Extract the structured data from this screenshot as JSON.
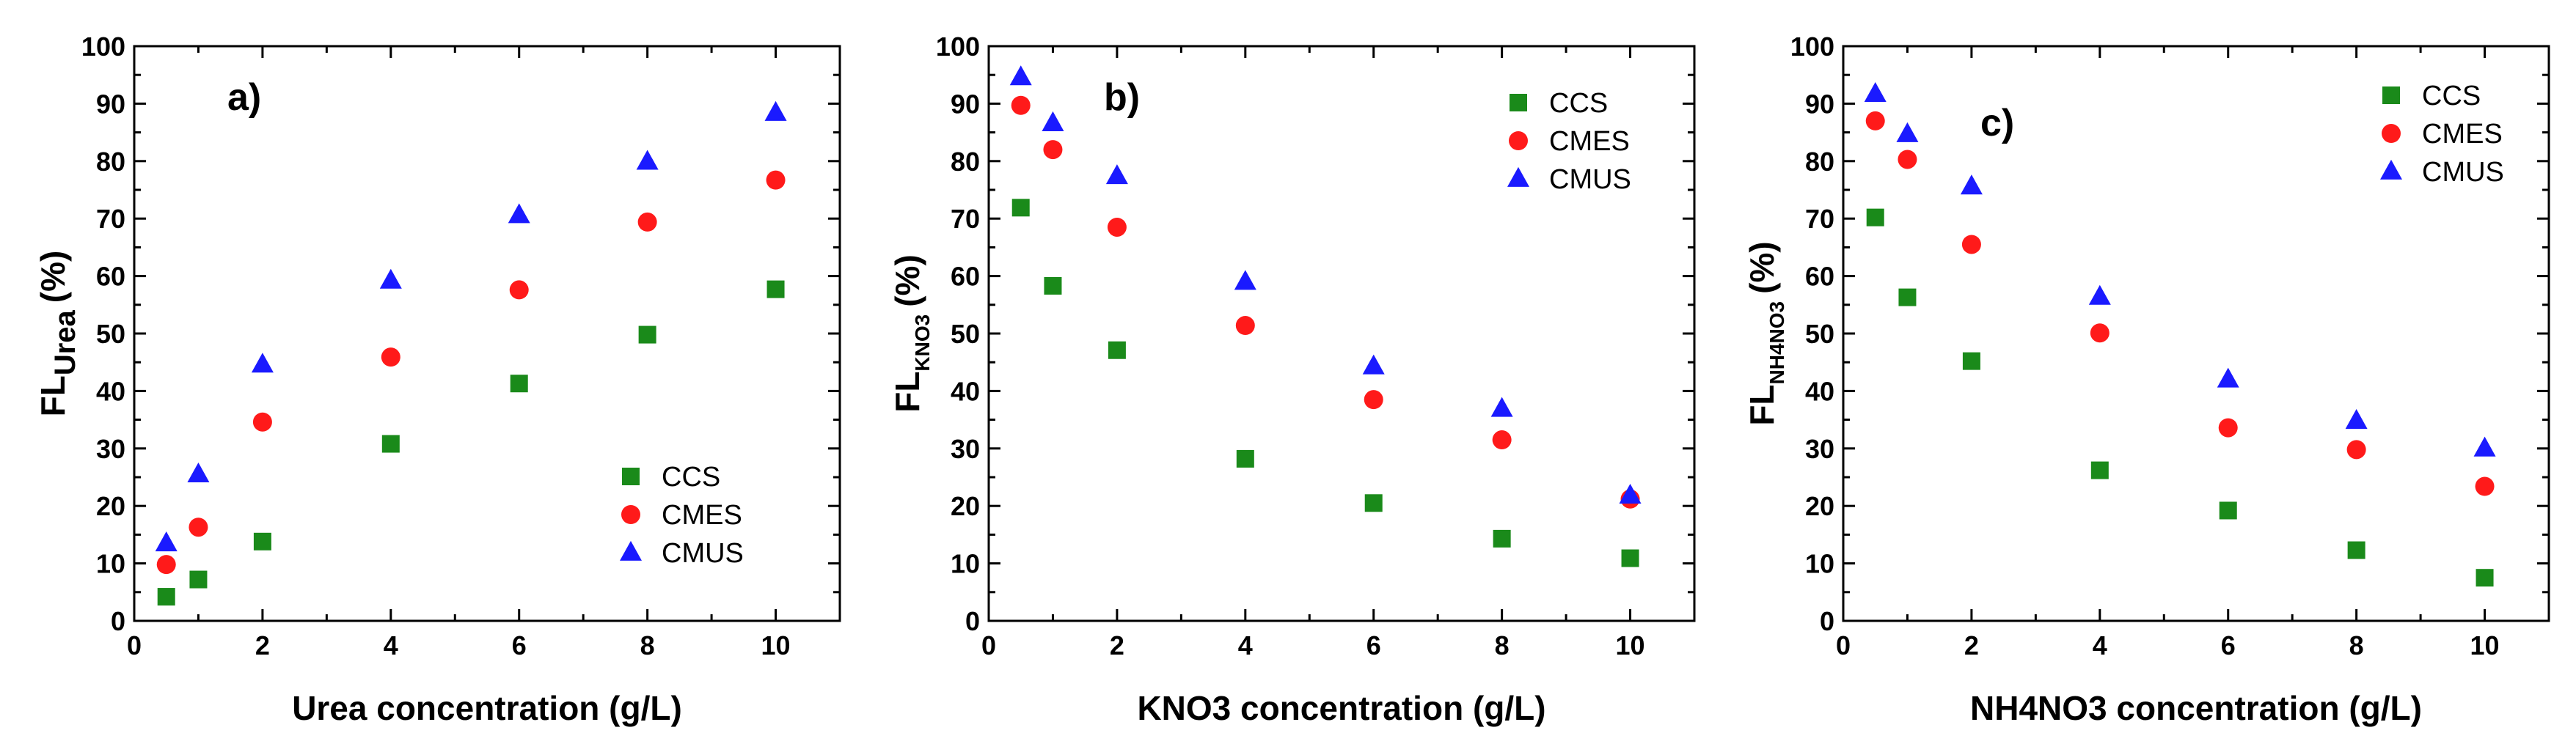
{
  "chart_data": [
    {
      "type": "scatter",
      "panel_label": "a)",
      "xlabel": "Urea concentration (g/L)",
      "ylabel_main": "FL",
      "ylabel_sub": "Urea",
      "ylabel_unit": "(%)",
      "xlim": [
        0,
        11
      ],
      "ylim": [
        0,
        100
      ],
      "xticks": [
        0,
        2,
        4,
        6,
        8,
        10
      ],
      "yticks": [
        0,
        10,
        20,
        30,
        40,
        50,
        60,
        70,
        80,
        90,
        100
      ],
      "legend_position": "bottom-right",
      "series": [
        {
          "name": "CCS",
          "marker": "square",
          "color": "#1a8a1a",
          "x": [
            0.5,
            1,
            2,
            4,
            6,
            8,
            10
          ],
          "y": [
            4.2,
            7.2,
            13.8,
            30.8,
            41.3,
            49.8,
            57.7
          ]
        },
        {
          "name": "CMES",
          "marker": "circle",
          "color": "#ff1a1a",
          "x": [
            0.5,
            1,
            2,
            4,
            6,
            8,
            10
          ],
          "y": [
            9.8,
            16.3,
            34.6,
            45.9,
            57.6,
            69.4,
            76.7
          ]
        },
        {
          "name": "CMUS",
          "marker": "triangle",
          "color": "#1a1aff",
          "x": [
            0.5,
            1,
            2,
            4,
            6,
            8,
            10
          ],
          "y": [
            13.5,
            25.5,
            44.6,
            59.2,
            70.6,
            79.9,
            88.4
          ]
        }
      ]
    },
    {
      "type": "scatter",
      "panel_label": "b)",
      "xlabel": "KNO3 concentration (g/L)",
      "ylabel_main": "FL",
      "ylabel_sub": "KNO3",
      "ylabel_unit": "(%)",
      "xlim": [
        0,
        11
      ],
      "ylim": [
        0,
        100
      ],
      "xticks": [
        0,
        2,
        4,
        6,
        8,
        10
      ],
      "yticks": [
        0,
        10,
        20,
        30,
        40,
        50,
        60,
        70,
        80,
        90,
        100
      ],
      "legend_position": "top-right",
      "series": [
        {
          "name": "CCS",
          "marker": "square",
          "color": "#1a8a1a",
          "x": [
            0.5,
            1,
            2,
            4,
            6,
            8,
            10
          ],
          "y": [
            71.9,
            58.3,
            47.1,
            28.2,
            20.5,
            14.3,
            10.9
          ]
        },
        {
          "name": "CMES",
          "marker": "circle",
          "color": "#ff1a1a",
          "x": [
            0.5,
            1,
            2,
            4,
            6,
            8,
            10
          ],
          "y": [
            89.7,
            82.0,
            68.5,
            51.4,
            38.5,
            31.5,
            21.2
          ]
        },
        {
          "name": "CMUS",
          "marker": "triangle",
          "color": "#1a1aff",
          "x": [
            0.5,
            1,
            2,
            4,
            6,
            8,
            10
          ],
          "y": [
            94.6,
            86.6,
            77.4,
            59.0,
            44.3,
            36.9,
            21.8
          ]
        }
      ]
    },
    {
      "type": "scatter",
      "panel_label": "c)",
      "xlabel": "NH4NO3 concentration (g/L)",
      "ylabel_main": "FL",
      "ylabel_sub": "NH4NO3",
      "ylabel_unit": "(%)",
      "xlim": [
        0,
        11
      ],
      "ylim": [
        0,
        100
      ],
      "xticks": [
        0,
        2,
        4,
        6,
        8,
        10
      ],
      "yticks": [
        0,
        10,
        20,
        30,
        40,
        50,
        60,
        70,
        80,
        90,
        100
      ],
      "legend_position": "top-right",
      "series": [
        {
          "name": "CCS",
          "marker": "square",
          "color": "#1a8a1a",
          "x": [
            0.5,
            1,
            2,
            4,
            6,
            8,
            10
          ],
          "y": [
            70.2,
            56.3,
            45.2,
            26.2,
            19.2,
            12.3,
            7.5
          ]
        },
        {
          "name": "CMES",
          "marker": "circle",
          "color": "#ff1a1a",
          "x": [
            0.5,
            1,
            2,
            4,
            6,
            8,
            10
          ],
          "y": [
            87.0,
            80.3,
            65.5,
            50.1,
            33.6,
            29.8,
            23.4
          ]
        },
        {
          "name": "CMUS",
          "marker": "triangle",
          "color": "#1a1aff",
          "x": [
            0.5,
            1,
            2,
            4,
            6,
            8,
            10
          ],
          "y": [
            91.7,
            84.7,
            75.6,
            56.4,
            42.0,
            34.8,
            30.0
          ]
        }
      ]
    }
  ]
}
